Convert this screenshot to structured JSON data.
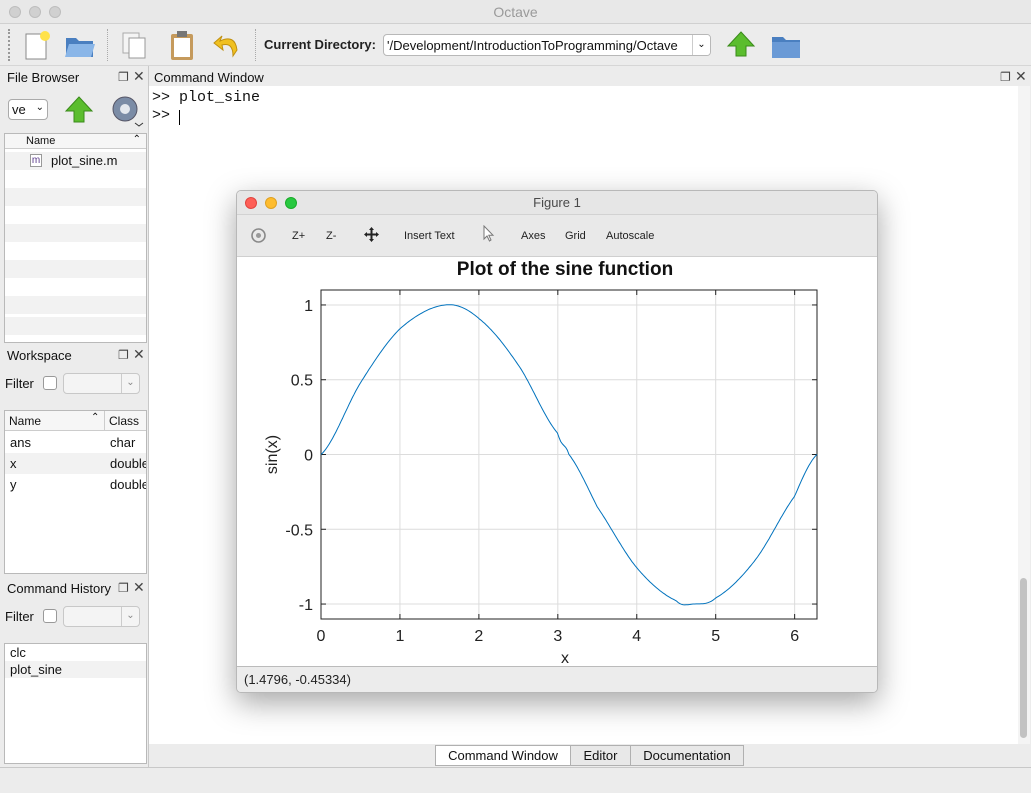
{
  "window": {
    "title": "Octave"
  },
  "toolbar": {
    "current_dir_label": "Current Directory:",
    "current_dir_value": "'/Development/IntroductionToProgramming/Octave"
  },
  "file_browser": {
    "title": "File Browser",
    "dir_combo": "ve",
    "column_name": "Name",
    "files": [
      "plot_sine.m"
    ],
    "file_icon_letter": "m"
  },
  "workspace": {
    "title": "Workspace",
    "filter_label": "Filter",
    "columns": [
      "Name",
      "Class"
    ],
    "rows": [
      {
        "name": "ans",
        "class": "char"
      },
      {
        "name": "x",
        "class": "double"
      },
      {
        "name": "y",
        "class": "double"
      }
    ]
  },
  "history": {
    "title": "Command History",
    "filter_label": "Filter",
    "items": [
      "clc",
      "plot_sine"
    ]
  },
  "command_window": {
    "title": "Command Window",
    "lines": [
      ">> plot_sine",
      ">> "
    ]
  },
  "bottom_tabs": [
    "Command Window",
    "Editor",
    "Documentation"
  ],
  "figure": {
    "window_title": "Figure 1",
    "toolbar": {
      "zoom_in": "Z+",
      "zoom_out": "Z-",
      "insert_text": "Insert Text",
      "axes": "Axes",
      "grid": "Grid",
      "autoscale": "Autoscale"
    },
    "status": "(1.4796, -0.45334)"
  },
  "chart_data": {
    "type": "line",
    "title": "Plot of the sine function",
    "xlabel": "x",
    "ylabel": "sin(x)",
    "xlim": [
      0,
      6.2832
    ],
    "ylim": [
      -1.1,
      1.1
    ],
    "xticks": [
      "0",
      "1",
      "2",
      "3",
      "4",
      "5",
      "6"
    ],
    "yticks": [
      "-1",
      "-0.5",
      "0",
      "0.5",
      "1"
    ],
    "grid": true,
    "series": [
      {
        "function": "sin(x)",
        "color": "#0072bd",
        "x": [
          0,
          0.5,
          1.0,
          1.5708,
          2.0,
          2.5,
          3.0,
          3.1416,
          3.5,
          4.0,
          4.5,
          4.7124,
          5.0,
          5.5,
          6.0,
          6.2832
        ],
        "y": [
          0,
          0.479,
          0.841,
          1.0,
          0.909,
          0.598,
          0.141,
          0,
          -0.351,
          -0.757,
          -0.978,
          -1.0,
          -0.959,
          -0.706,
          -0.279,
          0
        ]
      }
    ]
  }
}
